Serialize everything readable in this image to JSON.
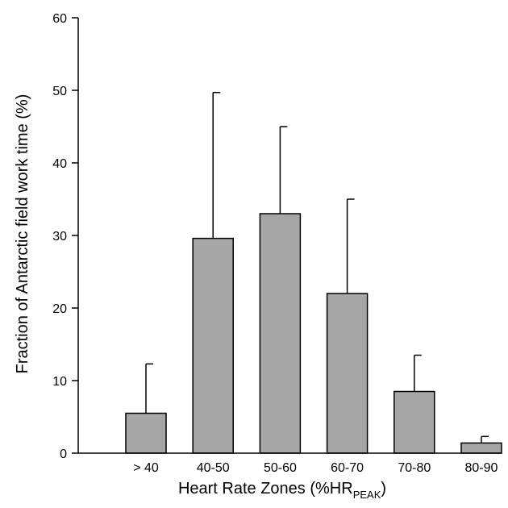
{
  "chart_data": {
    "type": "bar",
    "title": "",
    "xlabel": "Heart Rate Zones (%HR",
    "xlabel_subscript": "PEAK",
    "xlabel_suffix": ")",
    "ylabel": "Fraction of Antarctic field work time (%)",
    "categories": [
      "> 40",
      "40-50",
      "50-60",
      "60-70",
      "70-80",
      "80-90"
    ],
    "values": [
      5.5,
      29.6,
      33.0,
      22.0,
      8.5,
      1.4
    ],
    "error_upper": [
      12.3,
      49.7,
      45.0,
      35.0,
      13.5,
      2.3
    ],
    "ylim": [
      0,
      60
    ],
    "yticks": [
      0,
      10,
      20,
      30,
      40,
      50,
      60
    ],
    "grid": false,
    "bar_color": "#a6a6a6",
    "bar_edge_color": "#000000"
  }
}
